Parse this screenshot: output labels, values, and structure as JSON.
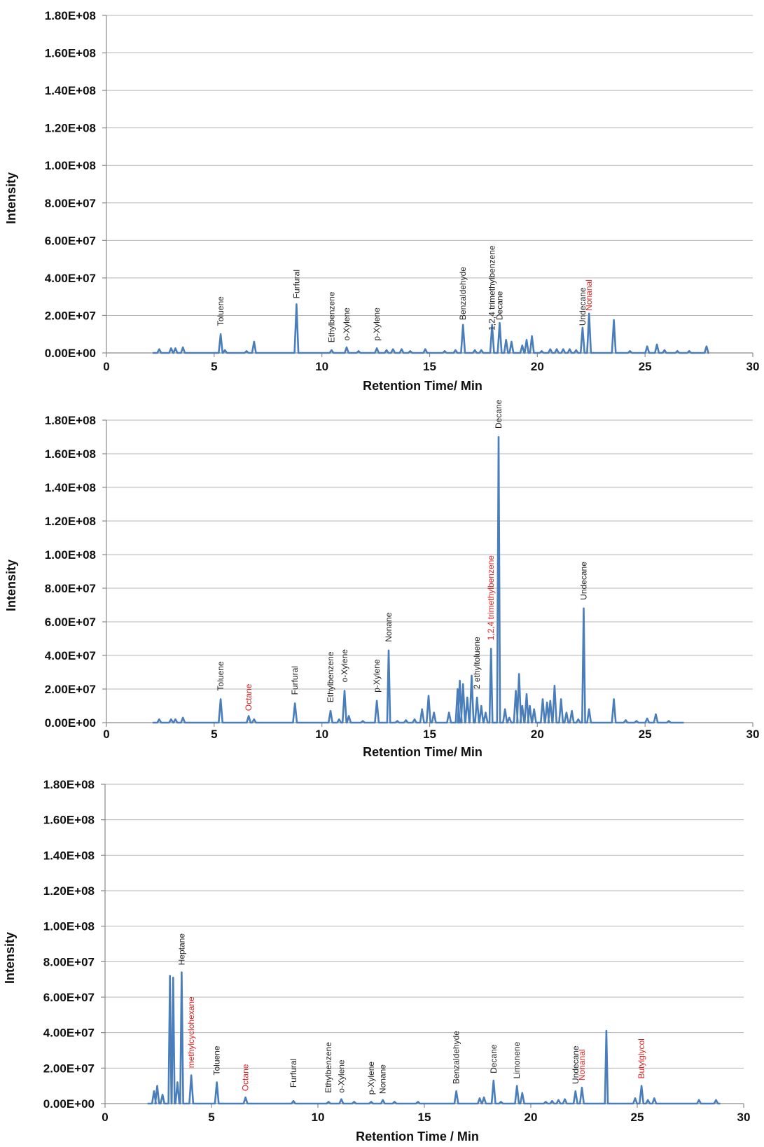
{
  "colors": {
    "trace": "#4a7ebb",
    "label_black": "#222222",
    "label_red": "#e02020",
    "grid": "#b4b4b4"
  },
  "chart_data": [
    {
      "type": "line",
      "xlabel": "Retention Time/ Min",
      "ylabel": "Intensity",
      "xlim": [
        0,
        30
      ],
      "ylim": [
        0,
        180000000
      ],
      "x_ticks": [
        "0",
        "5",
        "10",
        "15",
        "20",
        "25",
        "30"
      ],
      "y_ticks": [
        "0.00E+00",
        "2.00E+07",
        "4.00E+07",
        "6.00E+07",
        "8.00E+07",
        "1.00E+08",
        "1.20E+08",
        "1.40E+08",
        "1.60E+08",
        "1.80E+08"
      ],
      "grid": true,
      "trace_end": 27.9,
      "peaks": [
        [
          2.45,
          2
        ],
        [
          3.0,
          2.5
        ],
        [
          3.2,
          2.5
        ],
        [
          3.55,
          3
        ],
        [
          5.3,
          10
        ],
        [
          5.5,
          1.5
        ],
        [
          6.5,
          1
        ],
        [
          6.85,
          6
        ],
        [
          8.82,
          26
        ],
        [
          10.45,
          1.5
        ],
        [
          11.15,
          3
        ],
        [
          11.7,
          1
        ],
        [
          12.55,
          2.5
        ],
        [
          13.0,
          1.5
        ],
        [
          13.3,
          2
        ],
        [
          13.7,
          2
        ],
        [
          14.1,
          1
        ],
        [
          14.8,
          2
        ],
        [
          15.7,
          1
        ],
        [
          16.2,
          1.5
        ],
        [
          16.55,
          15
        ],
        [
          17.1,
          1.5
        ],
        [
          17.4,
          1.5
        ],
        [
          17.9,
          15
        ],
        [
          18.25,
          16
        ],
        [
          18.55,
          7
        ],
        [
          18.8,
          6
        ],
        [
          19.3,
          4
        ],
        [
          19.5,
          7
        ],
        [
          19.75,
          9
        ],
        [
          20.2,
          1
        ],
        [
          20.6,
          2
        ],
        [
          20.9,
          2
        ],
        [
          21.2,
          2
        ],
        [
          21.5,
          2
        ],
        [
          21.8,
          1.5
        ],
        [
          22.1,
          13.5
        ],
        [
          22.4,
          21
        ],
        [
          23.55,
          17.5
        ],
        [
          24.3,
          1
        ],
        [
          25.1,
          3.5
        ],
        [
          25.55,
          4.5
        ],
        [
          25.9,
          1.5
        ],
        [
          26.5,
          1
        ],
        [
          27.05,
          1
        ],
        [
          27.85,
          3.5
        ]
      ],
      "labels": [
        {
          "text": "Toluene",
          "x": 5.3,
          "y": 14.5,
          "red": false
        },
        {
          "text": "Furfural",
          "x": 8.82,
          "y": 29,
          "red": false
        },
        {
          "text": "Ethylbenzene",
          "x": 10.45,
          "y": 5.5,
          "red": false
        },
        {
          "text": "o-Xylene",
          "x": 11.15,
          "y": 6.5,
          "red": false
        },
        {
          "text": "p-Xylene",
          "x": 12.55,
          "y": 6.5,
          "red": false
        },
        {
          "text": "Benzaldehyde",
          "x": 16.55,
          "y": 17.5,
          "red": false
        },
        {
          "text": "1,2,4 trimethylbenzene",
          "x": 17.9,
          "y": 12,
          "red": false
        },
        {
          "text": "Decane",
          "x": 18.25,
          "y": 17.5,
          "red": false
        },
        {
          "text": "Undecane",
          "x": 22.1,
          "y": 14.5,
          "red": false
        },
        {
          "text": "Nonanal",
          "x": 22.4,
          "y": 22.5,
          "red": true
        }
      ]
    },
    {
      "type": "line",
      "xlabel": "Retention Time/ Min",
      "ylabel": "Intensity",
      "xlim": [
        0,
        30
      ],
      "ylim": [
        0,
        180000000
      ],
      "x_ticks": [
        "0",
        "5",
        "10",
        "15",
        "20",
        "25",
        "30"
      ],
      "y_ticks": [
        "0.00E+00",
        "2.00E+07",
        "4.00E+07",
        "6.00E+07",
        "8.00E+07",
        "1.00E+08",
        "1.20E+08",
        "1.40E+08",
        "1.60E+08",
        "1.80E+08"
      ],
      "grid": true,
      "trace_end": 26.8,
      "peaks": [
        [
          2.45,
          2
        ],
        [
          3.0,
          2
        ],
        [
          3.2,
          2
        ],
        [
          3.55,
          3
        ],
        [
          5.3,
          14
        ],
        [
          6.6,
          4
        ],
        [
          6.85,
          2
        ],
        [
          8.75,
          11.5
        ],
        [
          10.4,
          7
        ],
        [
          10.8,
          2
        ],
        [
          11.05,
          19
        ],
        [
          11.25,
          4
        ],
        [
          11.9,
          1
        ],
        [
          12.55,
          13
        ],
        [
          13.1,
          43
        ],
        [
          13.5,
          1
        ],
        [
          13.9,
          1.5
        ],
        [
          14.3,
          2
        ],
        [
          14.65,
          8
        ],
        [
          14.95,
          16
        ],
        [
          15.2,
          6
        ],
        [
          15.9,
          6
        ],
        [
          16.3,
          20
        ],
        [
          16.4,
          25
        ],
        [
          16.55,
          23
        ],
        [
          16.75,
          15
        ],
        [
          16.95,
          28
        ],
        [
          17.2,
          15
        ],
        [
          17.4,
          10
        ],
        [
          17.6,
          6
        ],
        [
          17.85,
          44
        ],
        [
          18.2,
          170
        ],
        [
          18.5,
          8
        ],
        [
          18.7,
          3
        ],
        [
          19.0,
          19
        ],
        [
          19.15,
          29
        ],
        [
          19.3,
          10
        ],
        [
          19.5,
          17
        ],
        [
          19.65,
          10
        ],
        [
          19.85,
          8
        ],
        [
          20.25,
          14
        ],
        [
          20.45,
          12
        ],
        [
          20.6,
          13
        ],
        [
          20.8,
          22
        ],
        [
          21.1,
          14
        ],
        [
          21.35,
          6
        ],
        [
          21.6,
          7
        ],
        [
          21.9,
          2
        ],
        [
          22.15,
          68
        ],
        [
          22.4,
          8
        ],
        [
          23.55,
          14
        ],
        [
          24.1,
          1.5
        ],
        [
          24.6,
          1
        ],
        [
          25.1,
          2.5
        ],
        [
          25.5,
          5
        ],
        [
          26.1,
          1
        ]
      ],
      "labels": [
        {
          "text": "Toluene",
          "x": 5.3,
          "y": 19,
          "red": false
        },
        {
          "text": "Octane",
          "x": 6.6,
          "y": 7,
          "red": true
        },
        {
          "text": "Furfural",
          "x": 8.75,
          "y": 16.5,
          "red": false
        },
        {
          "text": "Ethylbenzene",
          "x": 10.4,
          "y": 12,
          "red": false
        },
        {
          "text": "o-Xylene",
          "x": 11.05,
          "y": 24,
          "red": false
        },
        {
          "text": "p-Xylene",
          "x": 12.55,
          "y": 18,
          "red": false
        },
        {
          "text": "Nonane",
          "x": 13.1,
          "y": 48,
          "red": false
        },
        {
          "text": "2 ethyltoluene",
          "x": 17.2,
          "y": 20,
          "red": false
        },
        {
          "text": "1,2,4 trimethylbenzene",
          "x": 17.85,
          "y": 49,
          "red": true
        },
        {
          "text": "Decane",
          "x": 18.2,
          "y": 175,
          "red": false
        },
        {
          "text": "Undecane",
          "x": 22.15,
          "y": 73,
          "red": false
        }
      ]
    },
    {
      "type": "line",
      "xlabel": "Retention Time / Min",
      "ylabel": "Intensity",
      "xlim": [
        0,
        30
      ],
      "ylim": [
        0,
        180000000
      ],
      "x_ticks": [
        "0",
        "5",
        "10",
        "15",
        "20",
        "25",
        "30"
      ],
      "y_ticks": [
        "0.00E+00",
        "2.00E+07",
        "4.00E+07",
        "6.00E+07",
        "8.00E+07",
        "1.00E+08",
        "1.20E+08",
        "1.40E+08",
        "1.60E+08",
        "1.80E+08"
      ],
      "grid": true,
      "trace_end": 28.9,
      "peaks": [
        [
          2.3,
          7
        ],
        [
          2.45,
          10
        ],
        [
          2.7,
          5
        ],
        [
          3.05,
          72
        ],
        [
          3.2,
          71
        ],
        [
          3.4,
          12
        ],
        [
          3.6,
          74
        ],
        [
          4.05,
          16
        ],
        [
          5.25,
          12
        ],
        [
          6.6,
          3.5
        ],
        [
          8.85,
          1.5
        ],
        [
          10.5,
          1
        ],
        [
          11.1,
          2.5
        ],
        [
          11.7,
          1
        ],
        [
          12.5,
          1
        ],
        [
          13.05,
          2
        ],
        [
          13.6,
          1
        ],
        [
          14.7,
          1
        ],
        [
          16.5,
          7
        ],
        [
          17.6,
          3
        ],
        [
          17.8,
          3.5
        ],
        [
          18.25,
          13
        ],
        [
          18.6,
          1
        ],
        [
          19.35,
          10
        ],
        [
          19.6,
          6
        ],
        [
          20.7,
          1
        ],
        [
          21.0,
          1.5
        ],
        [
          21.3,
          2
        ],
        [
          21.6,
          2.5
        ],
        [
          22.1,
          7
        ],
        [
          22.4,
          9
        ],
        [
          23.55,
          41
        ],
        [
          24.9,
          3
        ],
        [
          25.2,
          10
        ],
        [
          25.5,
          2
        ],
        [
          25.8,
          3
        ],
        [
          27.9,
          2
        ],
        [
          28.7,
          2
        ]
      ],
      "labels": [
        {
          "text": "Heptane",
          "x": 3.6,
          "y": 78,
          "red": false
        },
        {
          "text": "methylcyclohexane",
          "x": 4.05,
          "y": 20,
          "red": true
        },
        {
          "text": "Toluene",
          "x": 5.25,
          "y": 16,
          "red": false
        },
        {
          "text": "Octane",
          "x": 6.6,
          "y": 7,
          "red": true
        },
        {
          "text": "Furfural",
          "x": 8.85,
          "y": 9,
          "red": false
        },
        {
          "text": "Ethylbenzene",
          "x": 10.5,
          "y": 6,
          "red": false
        },
        {
          "text": "o-Xylene",
          "x": 11.1,
          "y": 6,
          "red": false
        },
        {
          "text": "p-Xylene",
          "x": 12.5,
          "y": 5,
          "red": false
        },
        {
          "text": "Nonane",
          "x": 13.05,
          "y": 5.5,
          "red": false
        },
        {
          "text": "Benzaldehyde",
          "x": 16.5,
          "y": 11,
          "red": false
        },
        {
          "text": "Decane",
          "x": 18.25,
          "y": 17,
          "red": false
        },
        {
          "text": "Limonene",
          "x": 19.35,
          "y": 14,
          "red": false
        },
        {
          "text": "Undecane",
          "x": 22.1,
          "y": 11,
          "red": false
        },
        {
          "text": "Nonanal",
          "x": 22.4,
          "y": 13,
          "red": true
        },
        {
          "text": "Butylglycol",
          "x": 25.2,
          "y": 14,
          "red": true
        }
      ]
    }
  ]
}
